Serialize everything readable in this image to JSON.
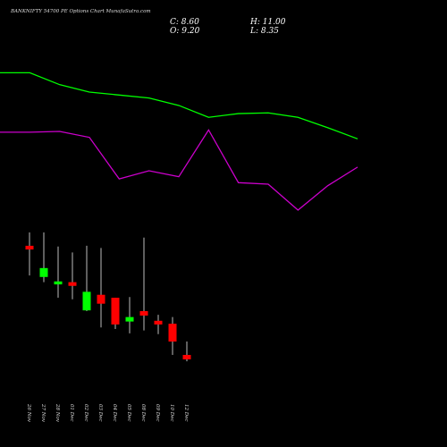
{
  "chart_data": {
    "type": "candlestick",
    "title": "BANKNIFTY 54700 PE Options Chart MunafaSutra.com",
    "close_label": "C: 8.60",
    "high_label": "H: 11.00",
    "open_label": "O: 9.20",
    "low_label": "L: 8.35",
    "categories": [
      "26 Nov",
      "27 Nov",
      "28 Nov",
      "01 Dec",
      "02 Dec",
      "03 Dec",
      "04 Dec",
      "05 Dec",
      "08 Dec",
      "09 Dec",
      "10 Dec",
      "12 Dec"
    ],
    "open": [
      23.9,
      19.7,
      18.7,
      19.0,
      15.2,
      17.3,
      16.9,
      13.7,
      15.1,
      13.8,
      13.4,
      9.2
    ],
    "high": [
      25.7,
      25.7,
      23.8,
      23.0,
      23.9,
      23.6,
      16.9,
      17.0,
      25.0,
      14.6,
      14.3,
      11.0
    ],
    "low": [
      19.9,
      19.0,
      16.9,
      16.7,
      15.1,
      12.9,
      12.7,
      12.1,
      12.5,
      12.0,
      9.2,
      8.35
    ],
    "close": [
      23.4,
      20.9,
      19.1,
      18.5,
      17.7,
      16.1,
      13.3,
      14.3,
      14.5,
      13.3,
      11.0,
      8.6
    ],
    "up_color": "#00ff00",
    "down_color": "#ff0000",
    "ylim": [
      -3.2,
      57
    ],
    "lines": {
      "x": [
        0,
        1,
        2,
        3,
        4,
        5,
        6,
        7,
        8,
        9,
        10,
        11,
        12
      ],
      "xlim": [
        0,
        12
      ],
      "series": [
        {
          "color": "#00ff00",
          "values": [
            47.2,
            47.2,
            45.6,
            44.6,
            44.2,
            43.8,
            42.8,
            41.2,
            41.7,
            41.8,
            41.2,
            39.8,
            38.3
          ]
        },
        {
          "color": "#cc00cc",
          "values": [
            39.2,
            39.2,
            39.3,
            38.5,
            32.9,
            34.0,
            33.2,
            39.5,
            32.4,
            32.2,
            28.7,
            32.0,
            34.5
          ]
        }
      ]
    }
  }
}
